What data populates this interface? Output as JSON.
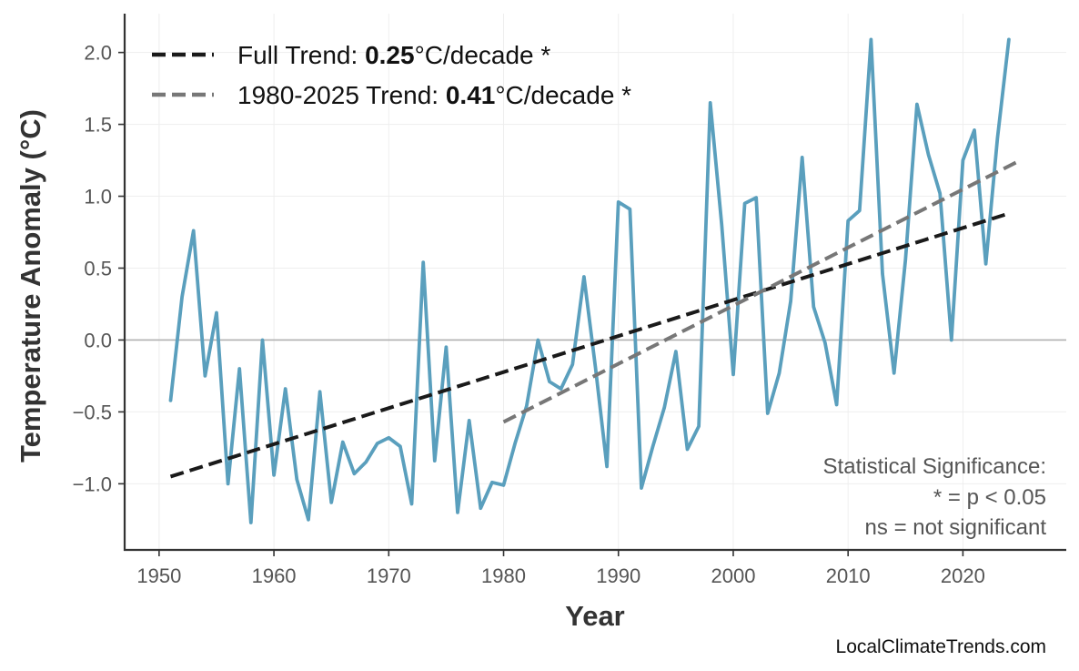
{
  "chart_data": {
    "type": "line",
    "xlabel": "Year",
    "ylabel": "Temperature Anomaly (°C)",
    "xlim": [
      1947,
      2029
    ],
    "ylim": [
      -1.46,
      2.27
    ],
    "x_ticks": [
      1950,
      1960,
      1970,
      1980,
      1990,
      2000,
      2010,
      2020
    ],
    "y_ticks": [
      -1.0,
      -0.5,
      0.0,
      0.5,
      1.0,
      1.5,
      2.0
    ],
    "y_tick_labels": [
      "−1.0",
      "−0.5",
      "0.0",
      "0.5",
      "1.0",
      "1.5",
      "2.0"
    ],
    "grid": true,
    "zero_line": true,
    "series": [
      {
        "color": "#5a9fbd",
        "x": [
          1951,
          1952,
          1953,
          1954,
          1955,
          1956,
          1957,
          1958,
          1959,
          1960,
          1961,
          1962,
          1963,
          1964,
          1965,
          1966,
          1967,
          1968,
          1969,
          1970,
          1971,
          1972,
          1973,
          1974,
          1975,
          1976,
          1977,
          1978,
          1979,
          1980,
          1981,
          1982,
          1983,
          1984,
          1985,
          1986,
          1987,
          1988,
          1989,
          1990,
          1991,
          1992,
          1993,
          1994,
          1995,
          1996,
          1997,
          1998,
          1999,
          2000,
          2001,
          2002,
          2003,
          2004,
          2005,
          2006,
          2007,
          2008,
          2009,
          2010,
          2011,
          2012,
          2013,
          2014,
          2015,
          2016,
          2017,
          2018,
          2019,
          2020,
          2021,
          2022,
          2023,
          2024
        ],
        "y": [
          -0.42,
          0.3,
          0.76,
          -0.25,
          0.19,
          -1.0,
          -0.2,
          -1.27,
          0.0,
          -0.94,
          -0.34,
          -0.97,
          -1.25,
          -0.36,
          -1.13,
          -0.71,
          -0.93,
          -0.85,
          -0.72,
          -0.68,
          -0.74,
          -1.14,
          0.54,
          -0.84,
          -0.05,
          -1.2,
          -0.56,
          -1.17,
          -0.99,
          -1.01,
          -0.72,
          -0.46,
          0.0,
          -0.29,
          -0.34,
          -0.17,
          0.44,
          -0.19,
          -0.88,
          0.96,
          0.91,
          -1.03,
          -0.74,
          -0.47,
          -0.08,
          -0.76,
          -0.6,
          1.65,
          0.8,
          -0.24,
          0.95,
          0.99,
          -0.51,
          -0.23,
          0.27,
          1.27,
          0.23,
          -0.02,
          -0.45,
          0.83,
          0.9,
          2.09,
          0.46,
          -0.23,
          0.56,
          1.64,
          1.29,
          1.02,
          0.0,
          1.25,
          1.46,
          0.53,
          1.4,
          2.09
        ]
      }
    ],
    "trends": [
      {
        "name": "Full Trend",
        "x": [
          1951,
          2024
        ],
        "y": [
          -0.95,
          0.88
        ],
        "color": "#1a1a1a"
      },
      {
        "name": "1980-2025 Trend",
        "x": [
          1980,
          2025
        ],
        "y": [
          -0.57,
          1.25
        ],
        "color": "#777777"
      }
    ],
    "legend": {
      "placement": "top-left",
      "entries": [
        {
          "prefix": "Full Trend: ",
          "value": "0.25",
          "suffix": "°C/decade *"
        },
        {
          "prefix": "1980-2025 Trend: ",
          "value": "0.41",
          "suffix": "°C/decade *"
        }
      ]
    },
    "significance_note": {
      "placement": "bottom-right",
      "lines": [
        "Statistical Significance:",
        "* = p < 0.05",
        "ns = not significant"
      ]
    },
    "credit": "LocalClimateTrends.com"
  }
}
